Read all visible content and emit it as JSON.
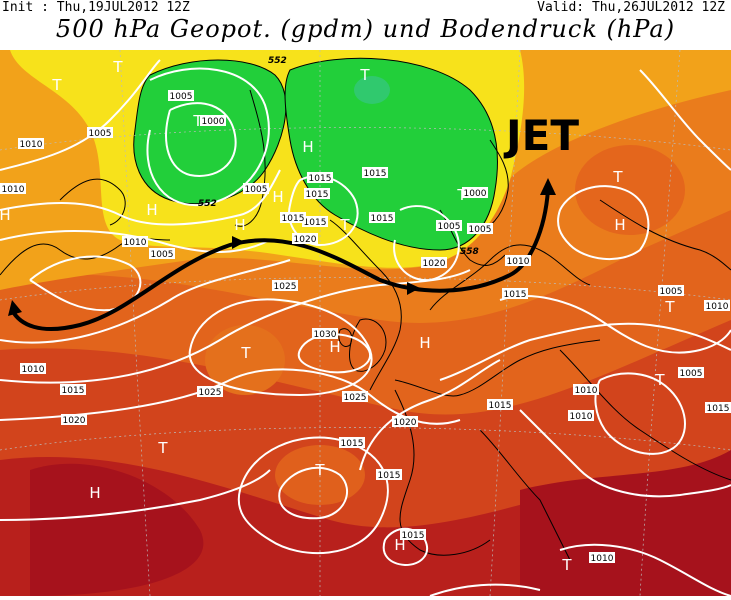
{
  "header": {
    "init": "Init : Thu,19JUL2012 12Z",
    "valid": "Valid: Thu,26JUL2012 12Z",
    "title": "500 hPa Geopot. (gpdm) und Bodendruck (hPa)"
  },
  "annotation": {
    "jet_label": "JET"
  },
  "colors": {
    "low_geopot_green": "#1fd13a",
    "light_green": "#6fe05a",
    "yellow": "#f7e51b",
    "orange_light": "#f6b21a",
    "orange": "#ee8a1c",
    "orange_dark": "#e4661c",
    "red": "#cc3a1c",
    "dark_red": "#a6121c",
    "isobar": "#ffffff",
    "coast": "#000000"
  },
  "pressure_centers": [
    {
      "type": "T"
    },
    {
      "type": "T"
    },
    {
      "type": "T"
    },
    {
      "type": "T"
    },
    {
      "type": "T"
    },
    {
      "type": "T"
    },
    {
      "type": "T"
    },
    {
      "type": "T"
    },
    {
      "type": "T"
    },
    {
      "type": "T"
    },
    {
      "type": "T"
    },
    {
      "type": "T"
    },
    {
      "type": "T"
    },
    {
      "type": "H"
    },
    {
      "type": "H"
    },
    {
      "type": "H"
    },
    {
      "type": "H"
    },
    {
      "type": "H"
    },
    {
      "type": "H"
    },
    {
      "type": "H"
    },
    {
      "type": "H"
    },
    {
      "type": "H"
    },
    {
      "type": "H"
    }
  ],
  "isobar_labels": [
    "1005",
    "1000",
    "1005",
    "1010",
    "1005",
    "1010",
    "1005",
    "1015",
    "1015",
    "1015",
    "1015",
    "1020",
    "1010",
    "1005",
    "1000",
    "1005",
    "1015",
    "1015",
    "1020",
    "1010",
    "1015",
    "1025",
    "1030",
    "1025",
    "1025",
    "1020",
    "1015",
    "1015",
    "1015",
    "1010",
    "1005",
    "1010",
    "1005",
    "1010",
    "1020",
    "1015",
    "1015",
    "1010",
    "1010",
    "1015"
  ],
  "geopot_labels": [
    "552",
    "552",
    "558"
  ]
}
